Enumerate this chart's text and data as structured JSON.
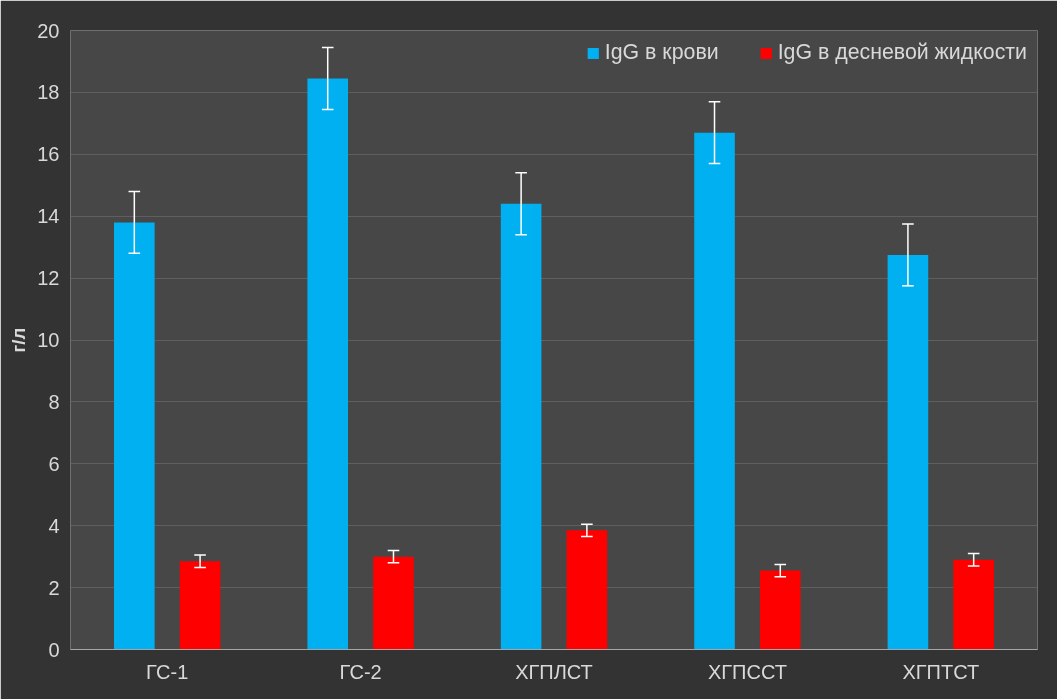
{
  "chart_data": {
    "type": "bar",
    "ylabel": "г/л",
    "categories": [
      "ГС-1",
      "ГС-2",
      "ХГПЛСТ",
      "ХГПССТ",
      "ХГПТСТ"
    ],
    "series": [
      {
        "name": "IgG в крови",
        "color": "#00b0f0",
        "values": [
          13.8,
          18.45,
          14.4,
          16.7,
          12.75
        ],
        "errors": [
          1.0,
          1.0,
          1.0,
          1.0,
          1.0
        ]
      },
      {
        "name": "IgG в десневой жидкости",
        "color": "#ff0000",
        "values": [
          2.85,
          3.0,
          3.85,
          2.55,
          2.9
        ],
        "errors": [
          0.2,
          0.2,
          0.2,
          0.2,
          0.2
        ]
      }
    ],
    "ylim": [
      0,
      20
    ],
    "yticks": [
      0,
      2,
      4,
      6,
      8,
      10,
      12,
      14,
      16,
      18,
      20
    ],
    "grid": "y",
    "legend": "top right"
  }
}
